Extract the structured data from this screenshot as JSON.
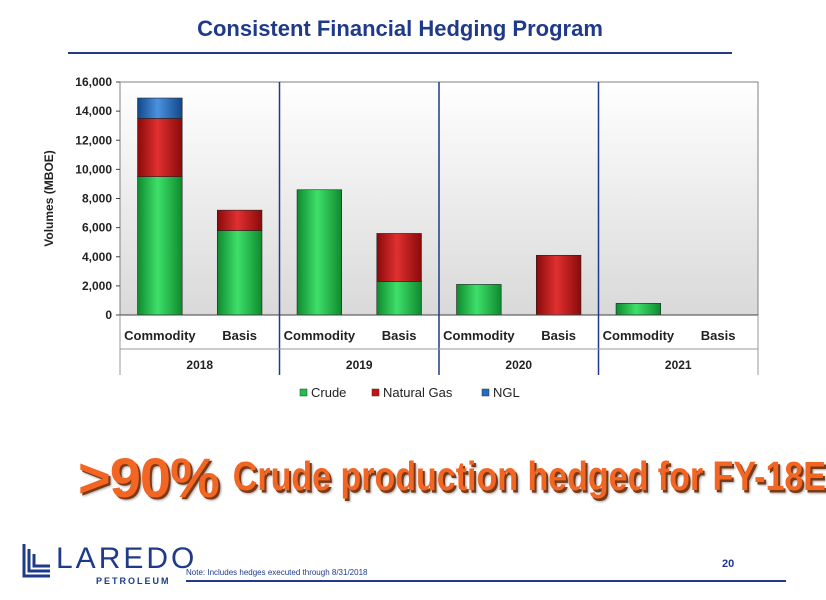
{
  "slide": {
    "title": "Consistent Financial Hedging Program",
    "headline_big": ">90%",
    "headline_rest": "Crude production hedged for FY-18E",
    "footnote": "Note: Includes hedges executed through 8/31/2018",
    "page_number": "20",
    "logo_word": "LAREDO",
    "logo_sub": "PETROLEUM"
  },
  "chart_data": {
    "type": "bar",
    "stacked": true,
    "ylabel": "Volumes (MBOE)",
    "ylim": [
      0,
      16000
    ],
    "yticks": [
      0,
      2000,
      4000,
      6000,
      8000,
      10000,
      12000,
      14000,
      16000
    ],
    "ytick_labels": [
      "0",
      "2,000",
      "4,000",
      "6,000",
      "8,000",
      "10,000",
      "12,000",
      "14,000",
      "16,000"
    ],
    "groups": [
      "2018",
      "2019",
      "2020",
      "2021"
    ],
    "categories": [
      "Commodity",
      "Basis",
      "Commodity",
      "Basis",
      "Commodity",
      "Basis",
      "Commodity",
      "Basis"
    ],
    "series": [
      {
        "name": "Crude",
        "color": "#1fbf4a",
        "values": [
          9500,
          5800,
          8600,
          2300,
          2100,
          0,
          800,
          0
        ]
      },
      {
        "name": "Natural Gas",
        "color": "#cc1111",
        "values": [
          4000,
          1400,
          0,
          3300,
          0,
          4100,
          0,
          0
        ]
      },
      {
        "name": "NGL",
        "color": "#1f6fc4",
        "values": [
          1400,
          0,
          0,
          0,
          0,
          0,
          0,
          0
        ]
      }
    ],
    "legend_position": "bottom",
    "grid": false
  },
  "colors": {
    "title_blue": "#1f3a8a",
    "headline_orange": "#f26522"
  }
}
